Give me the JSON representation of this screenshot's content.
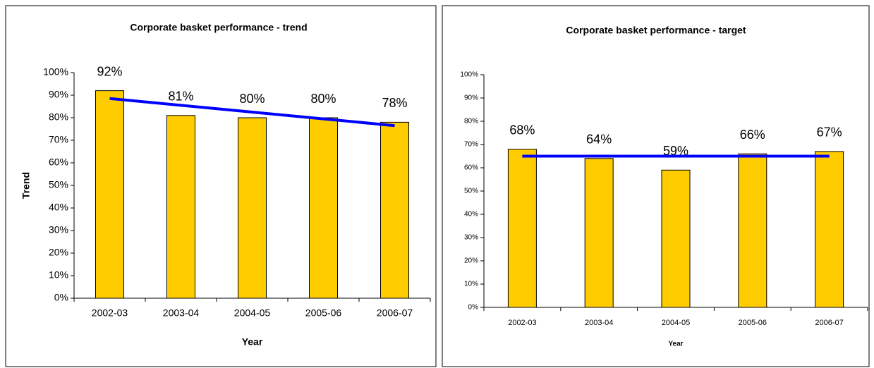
{
  "chart_data": [
    {
      "type": "bar",
      "title": "Corporate basket performance - trend",
      "x_label": "Year",
      "y_label": "Trend",
      "categories": [
        "2002-03",
        "2003-04",
        "2004-05",
        "2005-06",
        "2006-07"
      ],
      "values": [
        92,
        81,
        80,
        80,
        78
      ],
      "value_labels": [
        "92%",
        "81%",
        "80%",
        "80%",
        "78%"
      ],
      "color": "#FFCC00",
      "trend_line": {
        "color": "#0000FF",
        "values": [
          88.5,
          85.5,
          82.5,
          79.5,
          76.5
        ]
      },
      "ylim": [
        0,
        100
      ],
      "yticks": [
        {
          "value": 0,
          "label": "0%"
        },
        {
          "value": 10,
          "label": "10%"
        },
        {
          "value": 20,
          "label": "20%"
        },
        {
          "value": 30,
          "label": "30%"
        },
        {
          "value": 40,
          "label": "40%"
        },
        {
          "value": 50,
          "label": "50%"
        },
        {
          "value": 60,
          "label": "60%"
        },
        {
          "value": 70,
          "label": "70%"
        },
        {
          "value": 80,
          "label": "80%"
        },
        {
          "value": 90,
          "label": "90%"
        },
        {
          "value": 100,
          "label": "100%"
        }
      ],
      "grid": false
    },
    {
      "type": "bar",
      "title": "Corporate basket performance - target",
      "x_label": "Year",
      "categories": [
        "2002-03",
        "2003-04",
        "2004-05",
        "2005-06",
        "2006-07"
      ],
      "values": [
        68,
        64,
        59,
        66,
        67
      ],
      "value_labels": [
        "68%",
        "64%",
        "59%",
        "66%",
        "67%"
      ],
      "color": "#FFCC00",
      "trend_line": {
        "color": "#0000FF",
        "values": [
          65,
          65,
          65,
          65,
          65
        ]
      },
      "ylim": [
        0,
        100
      ],
      "yticks": [
        {
          "value": 0,
          "label": "0%"
        },
        {
          "value": 10,
          "label": "10%"
        },
        {
          "value": 20,
          "label": "20%"
        },
        {
          "value": 30,
          "label": "30%"
        },
        {
          "value": 40,
          "label": "40%"
        },
        {
          "value": 50,
          "label": "50%"
        },
        {
          "value": 60,
          "label": "60%"
        },
        {
          "value": 70,
          "label": "70%"
        },
        {
          "value": 80,
          "label": "80%"
        },
        {
          "value": 90,
          "label": "90%"
        },
        {
          "value": 100,
          "label": "100%"
        }
      ],
      "grid": false
    }
  ]
}
